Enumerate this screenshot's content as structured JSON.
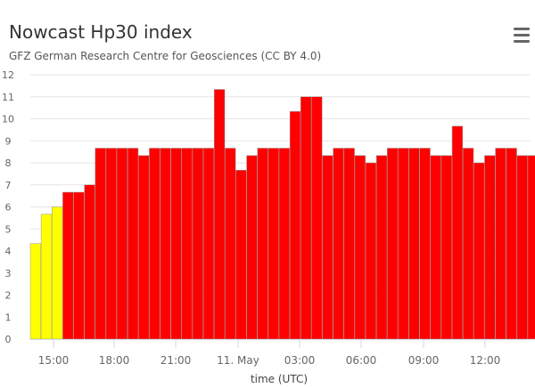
{
  "chart_data": {
    "type": "bar",
    "title": "Nowcast Hp30 index",
    "subtitle": "GFZ German Research Centre for Geosciences (CC BY 4.0)",
    "xlabel": "time (UTC)",
    "ylabel": "",
    "ylim": [
      0,
      12
    ],
    "yticks": [
      "0",
      "1",
      "2",
      "3",
      "4",
      "5",
      "6",
      "7",
      "8",
      "9",
      "10",
      "11",
      "12"
    ],
    "xticks": [
      "15:00",
      "18:00",
      "21:00",
      "11. May",
      "03:00",
      "06:00",
      "09:00",
      "12:00"
    ],
    "grid": true,
    "values": [
      4.333,
      5.667,
      6.0,
      6.667,
      6.667,
      7.0,
      8.667,
      8.667,
      8.667,
      8.667,
      8.333,
      8.667,
      8.667,
      8.667,
      8.667,
      8.667,
      8.667,
      11.333,
      8.667,
      7.667,
      8.333,
      8.667,
      8.667,
      8.667,
      10.333,
      11.0,
      11.0,
      8.333,
      8.667,
      8.667,
      8.333,
      8.0,
      8.333,
      8.667,
      8.667,
      8.667,
      8.667,
      8.333,
      8.333,
      9.667,
      8.667,
      8.0,
      8.333,
      8.667,
      8.667,
      8.333,
      8.333,
      8.0
    ],
    "colors": {
      "below_5": "#ffff00",
      "storm": "#ff0000",
      "bar_stroke": "#999999"
    }
  },
  "menu": {
    "icon": "hamburger-menu-icon"
  }
}
